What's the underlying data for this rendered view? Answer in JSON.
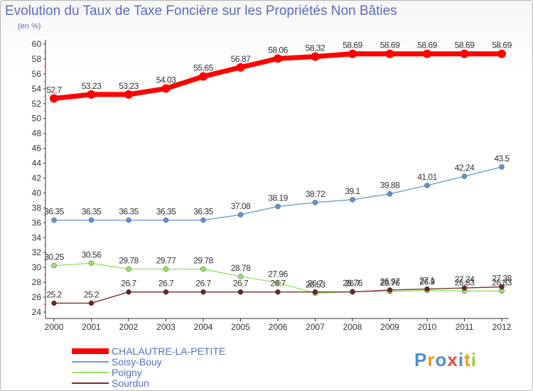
{
  "chart_data": {
    "type": "line",
    "title": "Evolution du Taux de Taxe Foncière sur les Propriétés Non Bâties",
    "unit_label": "(en %)",
    "x": [
      "2000",
      "2001",
      "2002",
      "2003",
      "2004",
      "2005",
      "2006",
      "2007",
      "2008",
      "2009",
      "2010",
      "2011",
      "2012"
    ],
    "ylim": [
      24,
      60
    ],
    "yticks": [
      24,
      26,
      28,
      30,
      32,
      34,
      36,
      38,
      40,
      42,
      44,
      46,
      48,
      50,
      52,
      54,
      56,
      58,
      60
    ],
    "grid": false,
    "legend_position": "bottom-left",
    "series": [
      {
        "name": "CHALAUTRE-LA-PETITE",
        "color": "#ff0000",
        "values": [
          52.7,
          53.23,
          53.23,
          54.03,
          55.65,
          56.87,
          58.06,
          58.32,
          58.69,
          58.69,
          58.69,
          58.69,
          58.69
        ]
      },
      {
        "name": "Soisy-Bouy",
        "color": "#6fa0cf",
        "values": [
          36.35,
          36.35,
          36.35,
          36.35,
          36.35,
          37.08,
          38.19,
          38.72,
          39.1,
          39.88,
          41.01,
          42.24,
          43.5
        ]
      },
      {
        "name": "Poigny",
        "color": "#99e26b",
        "values": [
          30.25,
          30.56,
          29.78,
          29.77,
          29.78,
          28.78,
          27.96,
          26.53,
          26.76,
          26.76,
          26.9,
          26.83,
          26.83
        ]
      },
      {
        "name": "Sourdun",
        "color": "#7b2f2f",
        "values": [
          25.2,
          25.2,
          26.7,
          26.7,
          26.7,
          26.7,
          26.7,
          26.7,
          26.7,
          26.97,
          27.1,
          27.24,
          27.38
        ]
      }
    ],
    "data_labels": [
      [
        "52.7",
        "53.23",
        "53.23",
        "54.03",
        "55.65",
        "56.87",
        "58.06",
        "58.32",
        "58.69",
        "58.69",
        "58.69",
        "58.69",
        "58.69"
      ],
      [
        "36.35",
        "36.35",
        "36.35",
        "36.35",
        "36.35",
        "37.08",
        "38.19",
        "38.72",
        "39.1",
        "39.88",
        "41.01",
        "42.24",
        "43.5"
      ],
      [
        "30.25",
        "30.56",
        "29.78",
        "29.77",
        "29.78",
        "28.78",
        "27.96",
        "26.53",
        "26.76",
        "26.76",
        "26.9",
        "26.83",
        "26.83"
      ],
      [
        "25.2",
        "25.2",
        "26.7",
        "26.7",
        "26.7",
        "26.7",
        "26.7",
        "26.7",
        "26.7",
        "26.97",
        "27.1",
        "27.24",
        "27.38"
      ]
    ]
  },
  "logo": {
    "text": "Proxiti",
    "letters": [
      "P",
      "r",
      "o",
      "x",
      "i",
      "t",
      "i"
    ],
    "colors": [
      "#4a90d9",
      "#f39c12",
      "#4a90d9",
      "#e74c3c",
      "#4a90d9",
      "#f39c12",
      "#9acd32"
    ]
  }
}
